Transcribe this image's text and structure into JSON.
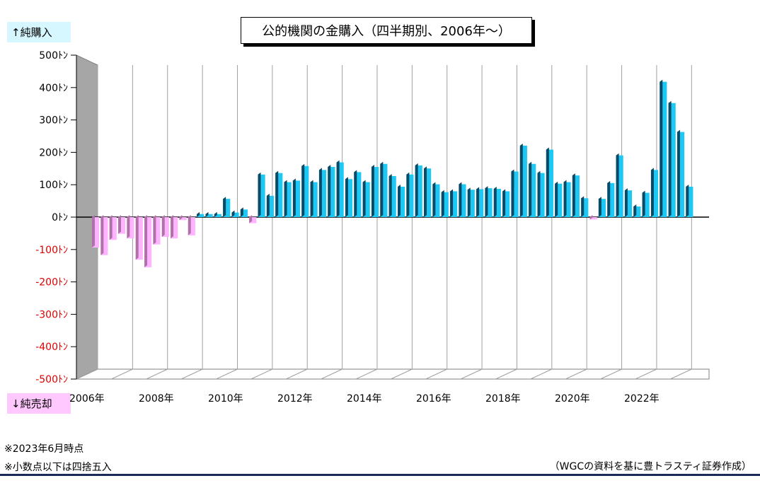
{
  "title": "公的機関の金購入（四半期別、2006年〜）",
  "label_up": "↑純購入",
  "label_down": "↓純売却",
  "notes": [
    "※2023年6月時点",
    "※小数点以下は四捨五入"
  ],
  "source": "（WGCの資料を基に豊トラスティ証券作成）",
  "colors": {
    "positive_front": "#1ec8f5",
    "positive_dark": "#0a4a66",
    "negative_front": "#ffb4ff",
    "negative_dark": "#b070a8",
    "negative_tick": "#e00000",
    "wall": "#a6a6a6"
  },
  "chart_data": {
    "type": "bar",
    "title": "公的機関の金購入（四半期別、2006年〜）",
    "ylabel": "",
    "ylim": [
      -500,
      500
    ],
    "y_ticks": [
      500,
      400,
      300,
      200,
      100,
      0,
      -100,
      -200,
      -300,
      -400,
      -500
    ],
    "y_tick_labels": [
      "500ﾄﾝ",
      "400ﾄﾝ",
      "300ﾄﾝ",
      "200ﾄﾝ",
      "100ﾄﾝ",
      "0ﾄﾝ",
      "-100ﾄﾝ",
      "-200ﾄﾝ",
      "-300ﾄﾝ",
      "-400ﾄﾝ",
      "-500ﾄﾝ"
    ],
    "x_tick_labels": [
      "2006年",
      "2008年",
      "2010年",
      "2012年",
      "2014年",
      "2016年",
      "2018年",
      "2020年",
      "2022年"
    ],
    "first_year": 2006,
    "frequency": "quarterly",
    "values": [
      -100,
      -125,
      -75,
      -55,
      -70,
      -140,
      -165,
      -90,
      -65,
      -70,
      -10,
      -60,
      10,
      10,
      10,
      60,
      15,
      25,
      -20,
      140,
      70,
      145,
      115,
      120,
      168,
      115,
      155,
      165,
      180,
      125,
      148,
      115,
      165,
      175,
      135,
      100,
      140,
      170,
      160,
      108,
      82,
      85,
      108,
      90,
      92,
      95,
      93,
      85,
      150,
      235,
      175,
      145,
      222,
      110,
      115,
      137,
      62,
      -8,
      60,
      112,
      203,
      88,
      35,
      80,
      155,
      445,
      375,
      280,
      100
    ],
    "grid": true,
    "legend": "none"
  }
}
